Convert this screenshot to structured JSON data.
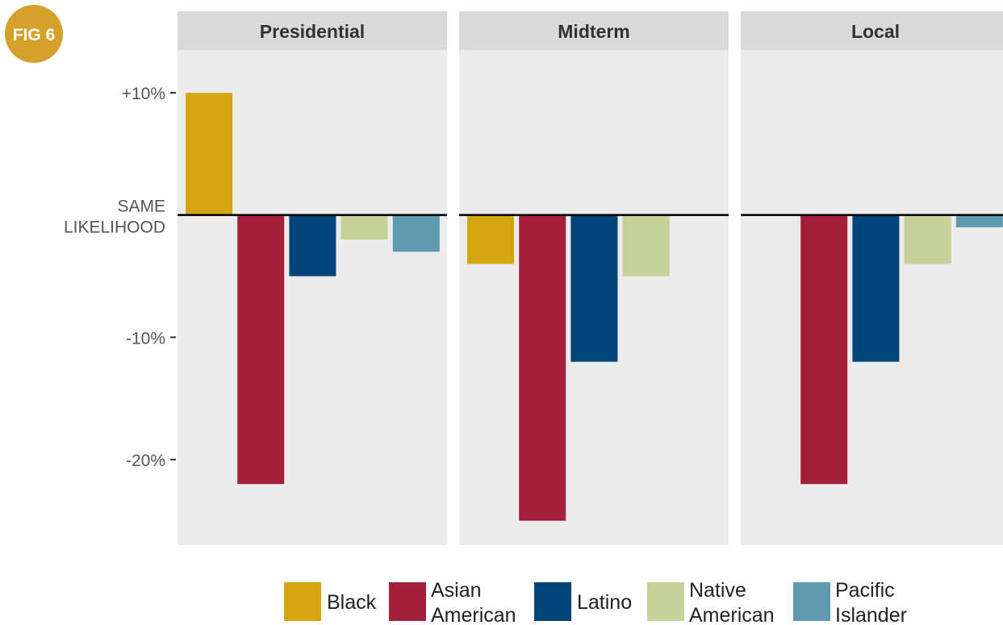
{
  "badge": {
    "label": "FIG 6",
    "color": "#d4a12a"
  },
  "chart_data": {
    "type": "bar",
    "facets": [
      "Presidential",
      "Midterm",
      "Local"
    ],
    "categories": [
      "Black",
      "Asian American",
      "Latino",
      "Native American",
      "Pacific Islander"
    ],
    "series": [
      {
        "facet": "Presidential",
        "values": [
          10,
          -22,
          -5,
          -2,
          -3
        ]
      },
      {
        "facet": "Midterm",
        "values": [
          -4,
          -25,
          -12,
          -5,
          null
        ]
      },
      {
        "facet": "Local",
        "values": [
          null,
          -22,
          -12,
          -4,
          -1
        ]
      }
    ],
    "colors": [
      "#d4a711",
      "#a41f3a",
      "#00457a",
      "#c6d198",
      "#5f9bb0"
    ],
    "yticks": [
      {
        "value": 10,
        "label": "+10%"
      },
      {
        "value": 0,
        "label": "SAME LIKELIHOOD",
        "lines": [
          "SAME",
          "LIKELIHOOD"
        ]
      },
      {
        "value": -10,
        "label": "-10%"
      },
      {
        "value": -20,
        "label": "-20%"
      }
    ],
    "ylim": [
      -27,
      13.5
    ],
    "legend": [
      {
        "label": "Black",
        "lines": [
          "Black"
        ]
      },
      {
        "label": "Asian American",
        "lines": [
          "Asian",
          "American"
        ]
      },
      {
        "label": "Latino",
        "lines": [
          "Latino"
        ]
      },
      {
        "label": "Native American",
        "lines": [
          "Native",
          "American"
        ]
      },
      {
        "label": "Pacific Islander",
        "lines": [
          "Pacific",
          "Islander"
        ]
      }
    ],
    "legend_position": "bottom",
    "panel_background": "#ebebeb",
    "strip_background": "#d9d9d9",
    "title": "",
    "xlabel": "",
    "ylabel": ""
  }
}
